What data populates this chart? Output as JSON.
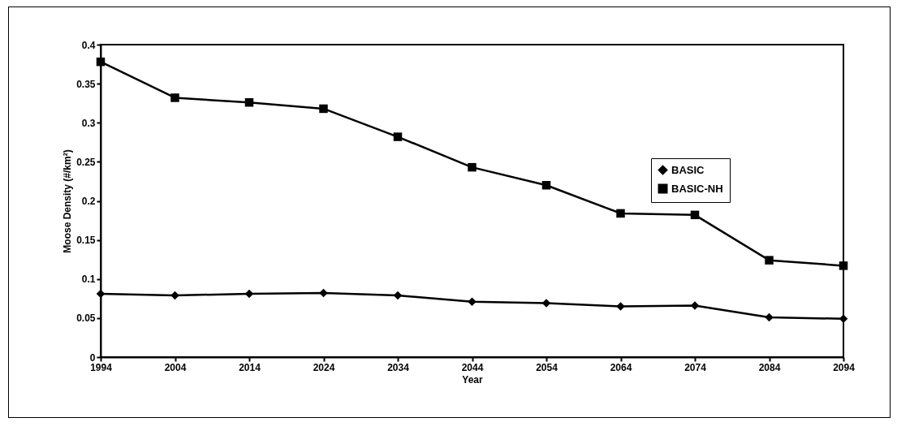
{
  "chart_data": {
    "type": "line",
    "xlabel": "Year",
    "ylabel": "Moose Density (#/km²)",
    "x": [
      1994,
      2004,
      2014,
      2024,
      2034,
      2044,
      2054,
      2064,
      2074,
      2084,
      2094
    ],
    "xlim": [
      1994,
      2094
    ],
    "xticks": [
      1994,
      2004,
      2014,
      2024,
      2034,
      2044,
      2054,
      2064,
      2074,
      2084,
      2094
    ],
    "ylim": [
      0,
      0.4
    ],
    "yticks": [
      0,
      0.05,
      0.1,
      0.15,
      0.2,
      0.25,
      0.3,
      0.35,
      0.4
    ],
    "grid": false,
    "legend": "top right",
    "line_style": "solid",
    "series": [
      {
        "name": "BASIC",
        "color": "#000000",
        "marker": "diamond",
        "values": [
          0.081,
          0.079,
          0.081,
          0.082,
          0.079,
          0.071,
          0.069,
          0.065,
          0.066,
          0.051,
          0.049
        ]
      },
      {
        "name": "BASIC-NH",
        "color": "#000000",
        "marker": "square",
        "values": [
          0.378,
          0.332,
          0.326,
          0.318,
          0.282,
          0.243,
          0.22,
          0.184,
          0.182,
          0.124,
          0.117
        ]
      }
    ]
  }
}
